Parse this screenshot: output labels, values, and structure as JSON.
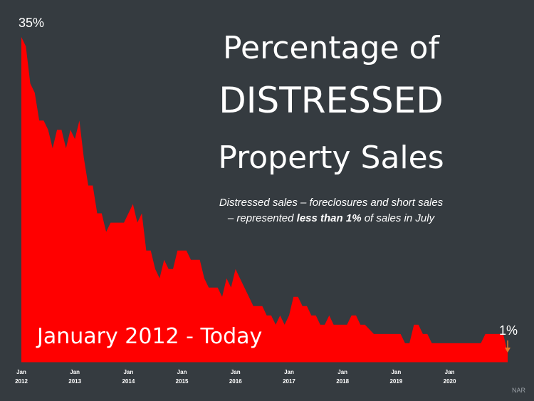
{
  "title": {
    "line1": "Percentage of",
    "line2": "DISTRESSED",
    "line3": "Property Sales"
  },
  "subtitle": {
    "line1": "Distressed sales – foreclosures and short sales",
    "line2_pre": "– represented ",
    "line2_bold": "less than 1%",
    "line2_post": " of sales in July"
  },
  "period_label": "January 2012 - Today",
  "source": "NAR",
  "colors": {
    "background": "#353b40",
    "area": "#ff0000",
    "text": "#ffffff",
    "end_marker": "#e07b2a"
  },
  "chart_data": {
    "type": "area",
    "series": [
      {
        "values": [
          35,
          34,
          30,
          29,
          26,
          26,
          25,
          23,
          25,
          25,
          23,
          25,
          24,
          26,
          22,
          19,
          19,
          16,
          16,
          14,
          15,
          15,
          15,
          15,
          16,
          17,
          15,
          16,
          12,
          12,
          10,
          9,
          11,
          10,
          10,
          12,
          12,
          12,
          11,
          11,
          11,
          9,
          8,
          8,
          8,
          7,
          9,
          8,
          10,
          9,
          8,
          7,
          6,
          6,
          6,
          5,
          5,
          4,
          5,
          4,
          5,
          7,
          7,
          6,
          6,
          5,
          5,
          4,
          4,
          5,
          4,
          4,
          4,
          4,
          5,
          5,
          4,
          4,
          3.5,
          3,
          3,
          3,
          3,
          3,
          3,
          3,
          2,
          2,
          4,
          4,
          3,
          3,
          2,
          2,
          2,
          2,
          2,
          2,
          2,
          2,
          2,
          2,
          2,
          2,
          3,
          3,
          3,
          3,
          3,
          1
        ]
      }
    ],
    "x_ticks": [
      {
        "month": "Jan",
        "year": "2012",
        "index": 0
      },
      {
        "month": "Jan",
        "year": "2013",
        "index": 12
      },
      {
        "month": "Jan",
        "year": "2014",
        "index": 24
      },
      {
        "month": "Jan",
        "year": "2015",
        "index": 36
      },
      {
        "month": "Jan",
        "year": "2016",
        "index": 48
      },
      {
        "month": "Jan",
        "year": "2017",
        "index": 60
      },
      {
        "month": "Jan",
        "year": "2018",
        "index": 72
      },
      {
        "month": "Jan",
        "year": "2019",
        "index": 84
      },
      {
        "month": "Jan",
        "year": "2020",
        "index": 96
      }
    ],
    "annotations": {
      "peak": "35%",
      "end": "1%"
    },
    "ylim": [
      0,
      37
    ],
    "grid": false
  }
}
